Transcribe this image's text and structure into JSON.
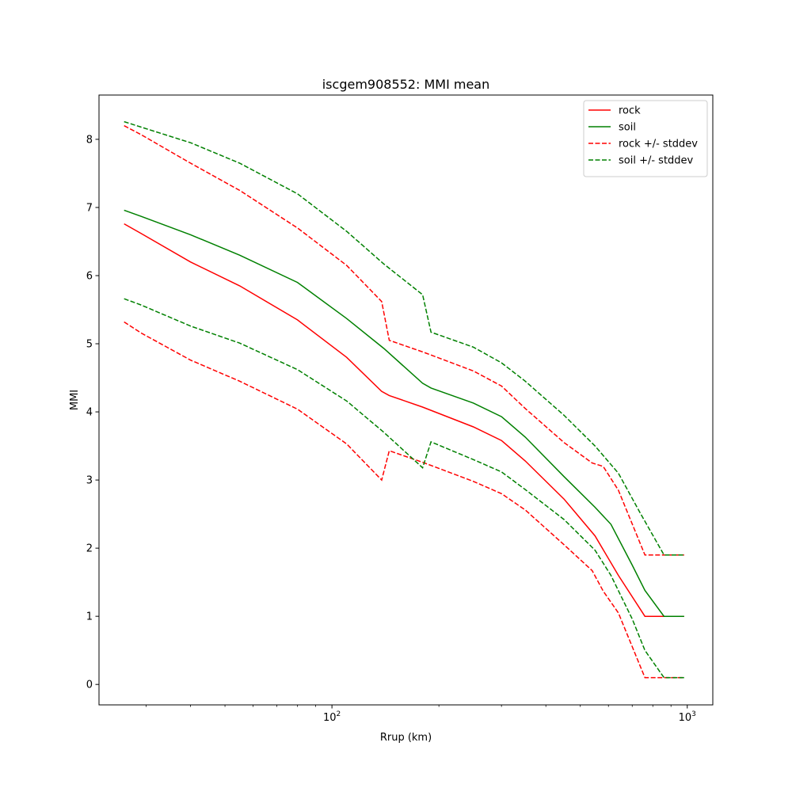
{
  "chart_data": {
    "type": "line",
    "title": "iscgem908552: MMI mean",
    "xlabel": "Rrup (km)",
    "ylabel": "MMI",
    "xscale": "log",
    "xlim": [
      22.1,
      1180
    ],
    "ylim": [
      -0.3,
      8.65
    ],
    "xticks": [
      {
        "value": 100,
        "base": "10",
        "exp": "2"
      },
      {
        "value": 1000,
        "base": "10",
        "exp": "3"
      }
    ],
    "yticks": [
      0,
      1,
      2,
      3,
      4,
      5,
      6,
      7,
      8
    ],
    "grid": false,
    "legend_position": "top-right",
    "series": [
      {
        "name": "rock",
        "color": "#ff0000",
        "dash": "solid",
        "points": [
          [
            26,
            6.76
          ],
          [
            29,
            6.62
          ],
          [
            40,
            6.2
          ],
          [
            55,
            5.85
          ],
          [
            80,
            5.35
          ],
          [
            110,
            4.8
          ],
          [
            138,
            4.3
          ],
          [
            145,
            4.24
          ],
          [
            180,
            4.07
          ],
          [
            250,
            3.78
          ],
          [
            300,
            3.58
          ],
          [
            350,
            3.28
          ],
          [
            450,
            2.72
          ],
          [
            550,
            2.18
          ],
          [
            640,
            1.6
          ],
          [
            760,
            1.0
          ],
          [
            860,
            1.0
          ],
          [
            980,
            1.0
          ]
        ]
      },
      {
        "name": "soil",
        "color": "#008000",
        "dash": "solid",
        "points": [
          [
            26,
            6.96
          ],
          [
            29,
            6.87
          ],
          [
            40,
            6.6
          ],
          [
            55,
            6.3
          ],
          [
            80,
            5.9
          ],
          [
            110,
            5.37
          ],
          [
            140,
            4.93
          ],
          [
            180,
            4.42
          ],
          [
            190,
            4.35
          ],
          [
            250,
            4.13
          ],
          [
            300,
            3.93
          ],
          [
            350,
            3.63
          ],
          [
            450,
            3.05
          ],
          [
            550,
            2.6
          ],
          [
            610,
            2.35
          ],
          [
            700,
            1.75
          ],
          [
            760,
            1.38
          ],
          [
            860,
            1.0
          ],
          [
            980,
            1.0
          ]
        ]
      },
      {
        "name": "rock +/- stddev",
        "color": "#ff0000",
        "dash": "dashed",
        "points": [
          [
            26,
            8.2
          ],
          [
            29,
            8.07
          ],
          [
            40,
            7.65
          ],
          [
            55,
            7.25
          ],
          [
            80,
            6.7
          ],
          [
            110,
            6.15
          ],
          [
            138,
            5.62
          ],
          [
            145,
            5.05
          ],
          [
            180,
            4.88
          ],
          [
            250,
            4.6
          ],
          [
            300,
            4.38
          ],
          [
            350,
            4.05
          ],
          [
            450,
            3.55
          ],
          [
            540,
            3.25
          ],
          [
            580,
            3.2
          ],
          [
            640,
            2.85
          ],
          [
            760,
            1.9
          ],
          [
            860,
            1.9
          ],
          [
            980,
            1.9
          ]
        ]
      },
      {
        "name": "soil +/- stddev",
        "color": "#008000",
        "dash": "dashed",
        "points": [
          [
            26,
            8.26
          ],
          [
            29,
            8.18
          ],
          [
            40,
            7.95
          ],
          [
            55,
            7.65
          ],
          [
            80,
            7.2
          ],
          [
            110,
            6.65
          ],
          [
            140,
            6.17
          ],
          [
            180,
            5.72
          ],
          [
            190,
            5.17
          ],
          [
            250,
            4.95
          ],
          [
            300,
            4.72
          ],
          [
            350,
            4.45
          ],
          [
            450,
            3.95
          ],
          [
            550,
            3.5
          ],
          [
            640,
            3.1
          ],
          [
            740,
            2.5
          ],
          [
            860,
            1.9
          ],
          [
            980,
            1.9
          ]
        ]
      },
      {
        "name": "",
        "color": "#ff0000",
        "dash": "dashed",
        "points": [
          [
            26,
            5.32
          ],
          [
            29,
            5.16
          ],
          [
            40,
            4.76
          ],
          [
            55,
            4.45
          ],
          [
            80,
            4.04
          ],
          [
            110,
            3.53
          ],
          [
            138,
            3.0
          ],
          [
            145,
            3.43
          ],
          [
            180,
            3.26
          ],
          [
            250,
            2.98
          ],
          [
            300,
            2.8
          ],
          [
            350,
            2.56
          ],
          [
            450,
            2.05
          ],
          [
            540,
            1.67
          ],
          [
            580,
            1.37
          ],
          [
            640,
            1.05
          ],
          [
            760,
            0.1
          ],
          [
            860,
            0.1
          ],
          [
            980,
            0.1
          ]
        ]
      },
      {
        "name": "",
        "color": "#008000",
        "dash": "dashed",
        "points": [
          [
            26,
            5.66
          ],
          [
            29,
            5.57
          ],
          [
            40,
            5.26
          ],
          [
            55,
            5.01
          ],
          [
            80,
            4.62
          ],
          [
            110,
            4.16
          ],
          [
            140,
            3.7
          ],
          [
            180,
            3.18
          ],
          [
            190,
            3.56
          ],
          [
            250,
            3.3
          ],
          [
            300,
            3.12
          ],
          [
            350,
            2.86
          ],
          [
            450,
            2.42
          ],
          [
            550,
            1.97
          ],
          [
            610,
            1.6
          ],
          [
            700,
            0.96
          ],
          [
            760,
            0.5
          ],
          [
            860,
            0.1
          ],
          [
            980,
            0.1
          ]
        ]
      }
    ]
  }
}
